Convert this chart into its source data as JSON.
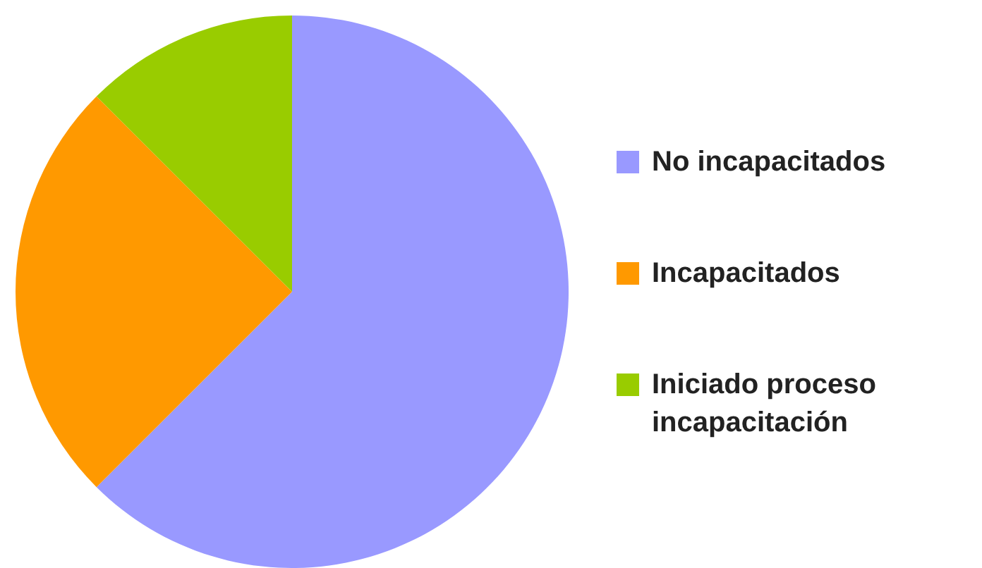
{
  "chart_data": {
    "type": "pie",
    "categories": [
      "No incapacitados",
      "Incapacitados",
      "Iniciado proceso incapacitación"
    ],
    "values": [
      62.5,
      25,
      12.5
    ],
    "colors": [
      "#9999ff",
      "#ff9900",
      "#99cc00"
    ],
    "legend": "right"
  }
}
